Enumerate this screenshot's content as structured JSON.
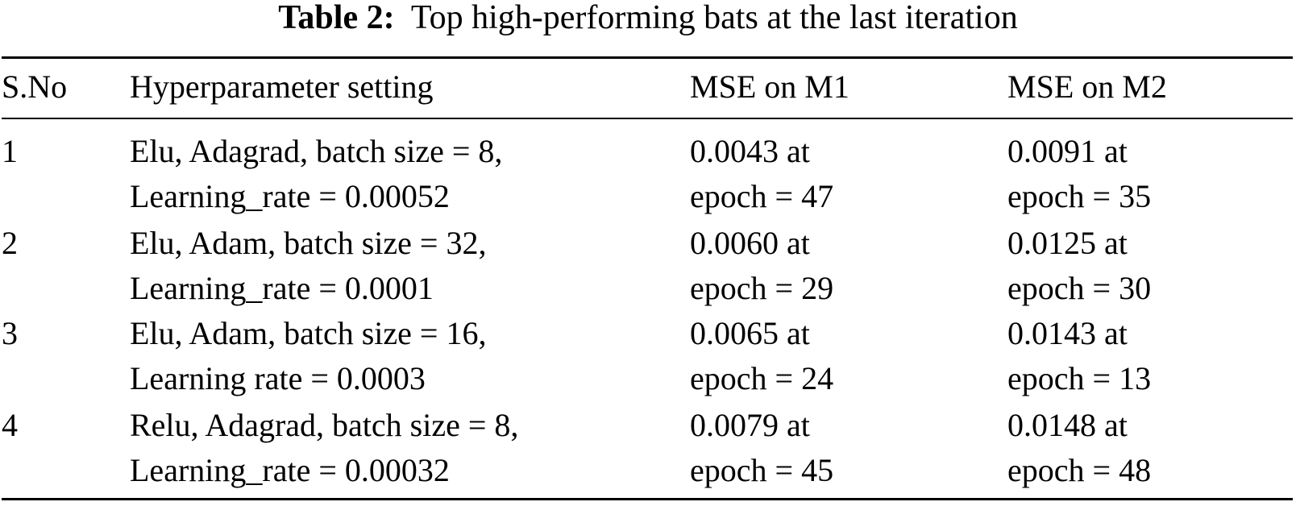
{
  "caption": {
    "label": "Table 2:",
    "text": "Top high-performing bats at the last iteration"
  },
  "table": {
    "headers": [
      "S.No",
      "Hyperparameter setting",
      "MSE on M1",
      "MSE on M2"
    ],
    "rows": [
      {
        "sno": "1",
        "setting": [
          "Elu, Adagrad, batch size = 8,",
          "Learning_rate = 0.00052"
        ],
        "m1": [
          "0.0043 at",
          "epoch = 47"
        ],
        "m2": [
          "0.0091 at",
          "epoch = 35"
        ]
      },
      {
        "sno": "2",
        "setting": [
          "Elu, Adam, batch size = 32,",
          "Learning_rate = 0.0001"
        ],
        "m1": [
          "0.0060 at",
          "epoch = 29"
        ],
        "m2": [
          "0.0125 at",
          "epoch = 30"
        ]
      },
      {
        "sno": "3",
        "setting": [
          "Elu, Adam, batch size = 16,",
          "Learning rate = 0.0003"
        ],
        "m1": [
          "0.0065 at",
          "epoch = 24"
        ],
        "m2": [
          "0.0143 at",
          "epoch = 13"
        ]
      },
      {
        "sno": "4",
        "setting": [
          "Relu, Adagrad, batch size = 8,",
          "Learning_rate = 0.00032"
        ],
        "m1": [
          "0.0079 at",
          "epoch = 45"
        ],
        "m2": [
          "0.0148 at",
          "epoch = 48"
        ]
      }
    ]
  }
}
